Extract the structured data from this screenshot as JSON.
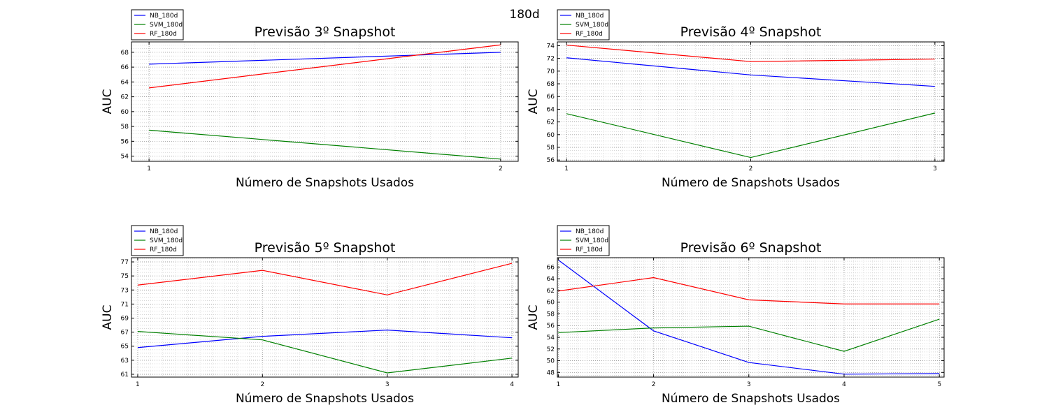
{
  "suptitle": "180d",
  "colors": {
    "NB_180d": "#0000ff",
    "SVM_180d": "#008000",
    "RF_180d": "#ff0000"
  },
  "chart_data": [
    {
      "type": "line",
      "title": "Previsão 3º Snapshot",
      "xlabel": "Número de Snapshots Usados",
      "ylabel": "AUC",
      "x": [
        1,
        2
      ],
      "xlim": [
        0.95,
        2.05
      ],
      "ylim": [
        53.3,
        69.4
      ],
      "yticks": [
        54,
        56,
        58,
        60,
        62,
        64,
        66,
        68
      ],
      "grid": true,
      "legend": "top-left, above plot",
      "series": [
        {
          "name": "NB_180d",
          "values": [
            66.4,
            68.0
          ]
        },
        {
          "name": "SVM_180d",
          "values": [
            57.5,
            53.6
          ]
        },
        {
          "name": "RF_180d",
          "values": [
            63.2,
            69.0
          ]
        }
      ]
    },
    {
      "type": "line",
      "title": "Previsão 4º Snapshot",
      "xlabel": "Número de Snapshots Usados",
      "ylabel": "AUC",
      "x": [
        1,
        2,
        3
      ],
      "xlim": [
        0.95,
        3.05
      ],
      "ylim": [
        55.8,
        74.6
      ],
      "yticks": [
        56,
        58,
        60,
        62,
        64,
        66,
        68,
        70,
        72,
        74
      ],
      "grid": true,
      "legend": "top-left, above plot",
      "series": [
        {
          "name": "NB_180d",
          "values": [
            72.1,
            69.4,
            67.6
          ]
        },
        {
          "name": "SVM_180d",
          "values": [
            63.3,
            56.4,
            63.4
          ]
        },
        {
          "name": "RF_180d",
          "values": [
            74.1,
            71.5,
            71.9
          ]
        }
      ]
    },
    {
      "type": "line",
      "title": "Previsão 5º Snapshot",
      "xlabel": "Número de Snapshots Usados",
      "ylabel": "AUC",
      "x": [
        1,
        2,
        3,
        4
      ],
      "xlim": [
        0.95,
        4.05
      ],
      "ylim": [
        60.6,
        77.6
      ],
      "yticks": [
        61,
        63,
        65,
        67,
        69,
        71,
        73,
        75,
        77
      ],
      "grid": true,
      "legend": "top-left, above plot",
      "series": [
        {
          "name": "NB_180d",
          "values": [
            64.8,
            66.4,
            67.3,
            66.2
          ]
        },
        {
          "name": "SVM_180d",
          "values": [
            67.1,
            65.9,
            61.2,
            63.3
          ]
        },
        {
          "name": "RF_180d",
          "values": [
            73.7,
            75.8,
            72.3,
            76.8
          ]
        }
      ]
    },
    {
      "type": "line",
      "title": "Previsão 6º Snapshot",
      "xlabel": "Número de Snapshots Usados",
      "ylabel": "AUC",
      "x": [
        1,
        2,
        3,
        4,
        5
      ],
      "xlim": [
        0.99,
        5.05
      ],
      "ylim": [
        47.2,
        67.6
      ],
      "yticks": [
        48,
        50,
        52,
        54,
        56,
        58,
        60,
        62,
        64,
        66
      ],
      "grid": true,
      "legend": "top-left, above plot",
      "series": [
        {
          "name": "NB_180d",
          "values": [
            67.2,
            55.1,
            49.7,
            47.7,
            47.8
          ]
        },
        {
          "name": "SVM_180d",
          "values": [
            54.8,
            55.6,
            55.9,
            51.6,
            57.1
          ]
        },
        {
          "name": "RF_180d",
          "values": [
            61.9,
            64.2,
            60.4,
            59.7,
            59.7
          ]
        }
      ]
    }
  ]
}
